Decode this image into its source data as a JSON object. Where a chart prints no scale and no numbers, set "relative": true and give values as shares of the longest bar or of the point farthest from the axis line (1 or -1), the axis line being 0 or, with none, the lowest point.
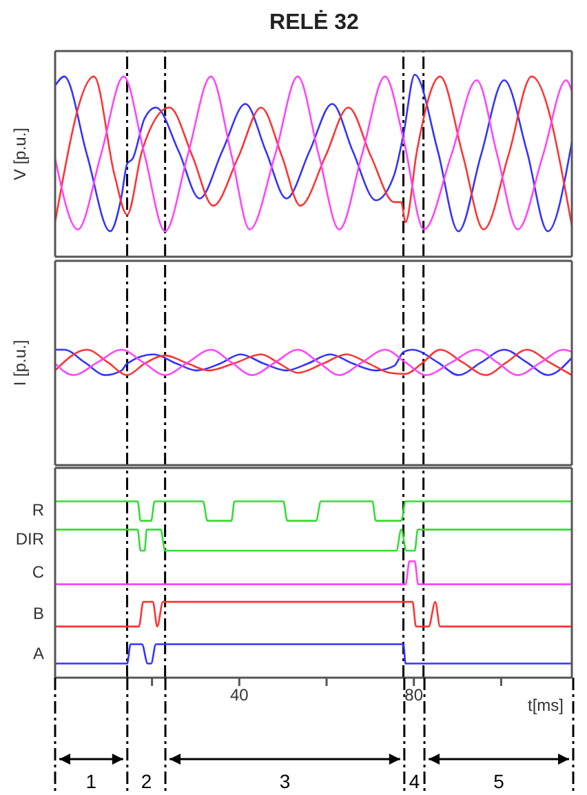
{
  "chart_data": [
    {
      "type": "line",
      "title": "RELĖ 32",
      "ylabel": "V [p.u.]",
      "relative": true,
      "xlim": [
        -2.2,
        116.2
      ],
      "marker": "none",
      "ref_lines": [
        {
          "axis": "x",
          "value": 14.3,
          "line_style": "dashed"
        },
        {
          "axis": "x",
          "value": 23.0,
          "line_style": "dashed"
        },
        {
          "axis": "x",
          "value": 77.6,
          "line_style": "dashed"
        },
        {
          "axis": "x",
          "value": 82.2,
          "line_style": "dashed"
        }
      ],
      "series": [
        {
          "color": "#3333ff",
          "x": [
            -2.2,
            -0.1,
            5.1,
            10.4,
            13.0,
            14.3,
            15.6,
            18.3,
            20.9,
            26.1,
            30.9,
            36.1,
            41.4,
            46.1,
            50.8,
            56.1,
            61.3,
            66.0,
            71.3,
            75.5,
            77.6,
            80.2,
            85.5,
            90.2,
            95.4,
            100.7,
            105.9,
            110.7,
            116.2
          ],
          "values": [
            0.94,
            0.99,
            0.56,
            0.14,
            0.33,
            0.51,
            0.54,
            0.76,
            0.82,
            0.58,
            0.32,
            0.58,
            0.84,
            0.58,
            0.32,
            0.58,
            0.84,
            0.58,
            0.31,
            0.45,
            0.67,
            1,
            0.58,
            0.14,
            0.56,
            0.97,
            0.58,
            0.14,
            0.63
          ]
        },
        {
          "color": "#ff3333",
          "x": [
            -2.2,
            6.7,
            11.4,
            14.3,
            17.7,
            24.0,
            29.3,
            34.0,
            39.8,
            45.0,
            49.8,
            54.0,
            59.7,
            65.0,
            70.2,
            75.5,
            77.1,
            78.1,
            80.7,
            86.0,
            91.2,
            96.0,
            101.7,
            107.0,
            116.2
          ],
          "values": [
            0.19,
            0.99,
            0.45,
            0.23,
            0.58,
            0.82,
            0.55,
            0.28,
            0.55,
            0.82,
            0.55,
            0.28,
            0.55,
            0.82,
            0.55,
            0.3,
            0.3,
            0.19,
            0.58,
            0.99,
            0.56,
            0.15,
            0.56,
            0.99,
            0.17
          ]
        },
        {
          "color": "#ff44ff",
          "x": [
            -2.2,
            3.0,
            8.3,
            13.5,
            18.3,
            23.0,
            28.2,
            33.5,
            38.2,
            42.4,
            48.2,
            53.4,
            58.2,
            62.9,
            68.1,
            73.4,
            77.6,
            82.3,
            88.6,
            94.4,
            99.1,
            103.8,
            109.6,
            114.9,
            116.2
          ],
          "values": [
            0.54,
            0.15,
            0.56,
            0.99,
            0.56,
            0.14,
            0.56,
            0.99,
            0.56,
            0.15,
            0.56,
            0.99,
            0.56,
            0.15,
            0.56,
            0.99,
            0.65,
            0.15,
            0.56,
            0.97,
            0.56,
            0.15,
            0.56,
            0.97,
            0.91
          ]
        }
      ]
    },
    {
      "type": "line",
      "ylabel": "I [p.u.]",
      "relative": true,
      "xlim": [
        -2.2,
        116.2
      ],
      "marker": "none",
      "ref_lines": [
        {
          "axis": "x",
          "value": 14.3,
          "line_style": "dashed"
        },
        {
          "axis": "x",
          "value": 23.0,
          "line_style": "dashed"
        },
        {
          "axis": "x",
          "value": 77.6,
          "line_style": "dashed"
        },
        {
          "axis": "x",
          "value": 82.2,
          "line_style": "dashed"
        }
      ],
      "series": [
        {
          "color": "#3333ff",
          "x": [
            -2.2,
            -0.1,
            4.6,
            9.3,
            13.0,
            14.3,
            20.4,
            25.6,
            30.3,
            35.6,
            40.3,
            45.6,
            50.8,
            55.7,
            60.8,
            66.0,
            71.3,
            75.5,
            77.6,
            79.7,
            85.5,
            90.2,
            95.4,
            100.7,
            105.9,
            110.7,
            116.2
          ],
          "values": [
            1,
            1,
            0.89,
            0.78,
            0.82,
            0.88,
            0.96,
            0.88,
            0.82,
            0.88,
            0.96,
            0.88,
            0.82,
            0.88,
            0.96,
            0.88,
            0.82,
            0.86,
            0.98,
            1,
            0.89,
            0.78,
            0.89,
            1,
            0.89,
            0.78,
            0.93
          ]
        },
        {
          "color": "#ff3333",
          "x": [
            -2.2,
            5.1,
            9.9,
            14.3,
            18.3,
            23.0,
            28.2,
            33.0,
            38.7,
            45.0,
            49.2,
            53.4,
            59.2,
            64.5,
            69.7,
            74.4,
            78.1,
            81.8,
            86.0,
            91.2,
            96.5,
            101.2,
            105.9,
            111.1,
            116.2
          ],
          "values": [
            0.82,
            1,
            0.89,
            0.78,
            0.88,
            0.95,
            0.88,
            0.82,
            0.88,
            0.96,
            0.88,
            0.8,
            0.88,
            0.96,
            0.88,
            0.8,
            0.79,
            0.88,
            1,
            0.89,
            0.78,
            0.89,
            1,
            0.89,
            0.78
          ]
        },
        {
          "color": "#ff44ff",
          "x": [
            -2.2,
            2.0,
            7.5,
            13.0,
            18.0,
            23.0,
            28.2,
            33.5,
            38.2,
            42.9,
            48.2,
            53.4,
            58.2,
            62.9,
            68.1,
            73.4,
            78.1,
            82.8,
            88.6,
            94.4,
            99.1,
            103.8,
            109.1,
            114.3,
            116.2
          ],
          "values": [
            0.88,
            0.78,
            0.89,
            1,
            0.89,
            0.78,
            0.89,
            1,
            0.89,
            0.78,
            0.89,
            1,
            0.89,
            0.78,
            0.89,
            1,
            0.89,
            0.78,
            0.89,
            1,
            0.89,
            0.78,
            0.89,
            1,
            0.98
          ]
        }
      ]
    },
    {
      "type": "line",
      "xlabel": "t[ms]",
      "relative": true,
      "xlim": [
        -2.2,
        116.2
      ],
      "xticks": [
        {
          "value": 20,
          "label": null
        },
        40,
        {
          "value": 60,
          "label": null
        },
        80,
        {
          "value": 100,
          "label": null
        }
      ],
      "tick_labels": "x",
      "marker": "none",
      "ref_lines": [
        {
          "axis": "x",
          "value": 14.3,
          "line_style": "dashed"
        },
        {
          "axis": "x",
          "value": 23.0,
          "line_style": "dashed"
        },
        {
          "axis": "x",
          "value": 77.6,
          "line_style": "dashed"
        },
        {
          "axis": "x",
          "value": 82.2,
          "line_style": "dashed"
        }
      ],
      "annotations": [
        "1",
        "2",
        "3",
        "4",
        "5"
      ],
      "series": [
        {
          "name": "R",
          "color": "#33dd33",
          "x": [
            -2.2,
            16.7,
            17.4,
            19.8,
            20.6,
            31.7,
            32.7,
            38.2,
            38.9,
            50.1,
            51.0,
            57.6,
            58.7,
            70.5,
            71.3,
            77.1,
            78.1,
            116.2
          ],
          "values": [
            1,
            1,
            0.89,
            0.89,
            1,
            1,
            0.89,
            0.89,
            1,
            1,
            0.89,
            0.89,
            1,
            1,
            0.89,
            0.89,
            1,
            1
          ]
        },
        {
          "name": "DIR",
          "color": "#33dd33",
          "x": [
            -2.2,
            16.7,
            17.4,
            18.3,
            18.8,
            22.0,
            23.0,
            76.0,
            77.1,
            78.3,
            80.2,
            80.9,
            116.2
          ],
          "values": [
            0.84,
            0.84,
            0.72,
            0.72,
            0.84,
            0.84,
            0.72,
            0.72,
            0.84,
            0.72,
            0.72,
            0.84,
            0.84
          ]
        },
        {
          "name": "C",
          "color": "#ff44ff",
          "x": [
            -2.2,
            78.1,
            79.0,
            80.2,
            81.0,
            116.2
          ],
          "values": [
            0.53,
            0.53,
            0.66,
            0.66,
            0.53,
            0.53
          ]
        },
        {
          "name": "B",
          "color": "#ff3333",
          "x": [
            -2.2,
            17.0,
            18.0,
            20.2,
            21.2,
            22.5,
            79.7,
            80.5,
            83.4,
            84.9,
            86.0,
            116.2
          ],
          "values": [
            0.29,
            0.29,
            0.43,
            0.43,
            0.29,
            0.43,
            0.43,
            0.29,
            0.29,
            0.43,
            0.29,
            0.29
          ]
        },
        {
          "name": "A",
          "color": "#3333ff",
          "x": [
            -2.2,
            14.3,
            15.1,
            17.7,
            19.0,
            19.8,
            20.9,
            77.6,
            78.1,
            116.2
          ],
          "values": [
            0.08,
            0.08,
            0.19,
            0.19,
            0.08,
            0.08,
            0.19,
            0.19,
            0.08,
            0.08
          ]
        }
      ]
    }
  ]
}
